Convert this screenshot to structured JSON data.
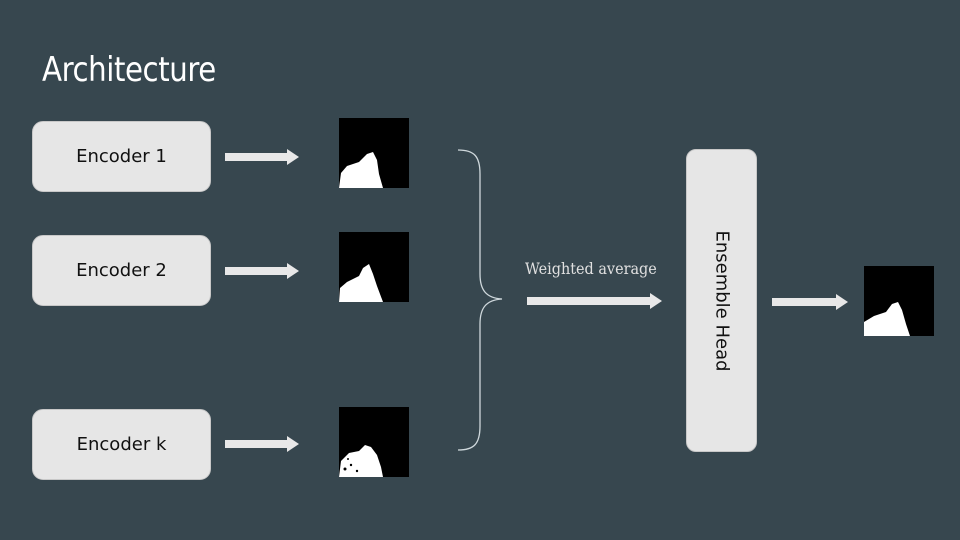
{
  "slide": {
    "title": "Architecture",
    "encoders": [
      "Encoder 1",
      "Encoder 2",
      "Encoder k"
    ],
    "weighted_label": "Weighted average",
    "ensemble_label": "Ensemble Head"
  },
  "colors": {
    "background": "#37474f",
    "box_fill": "#e6e6e6",
    "arrow": "#e8e8e8",
    "text_light": "#ffffff"
  },
  "icons": [
    "segmentation-mask-image",
    "curly-brace",
    "right-arrow"
  ]
}
